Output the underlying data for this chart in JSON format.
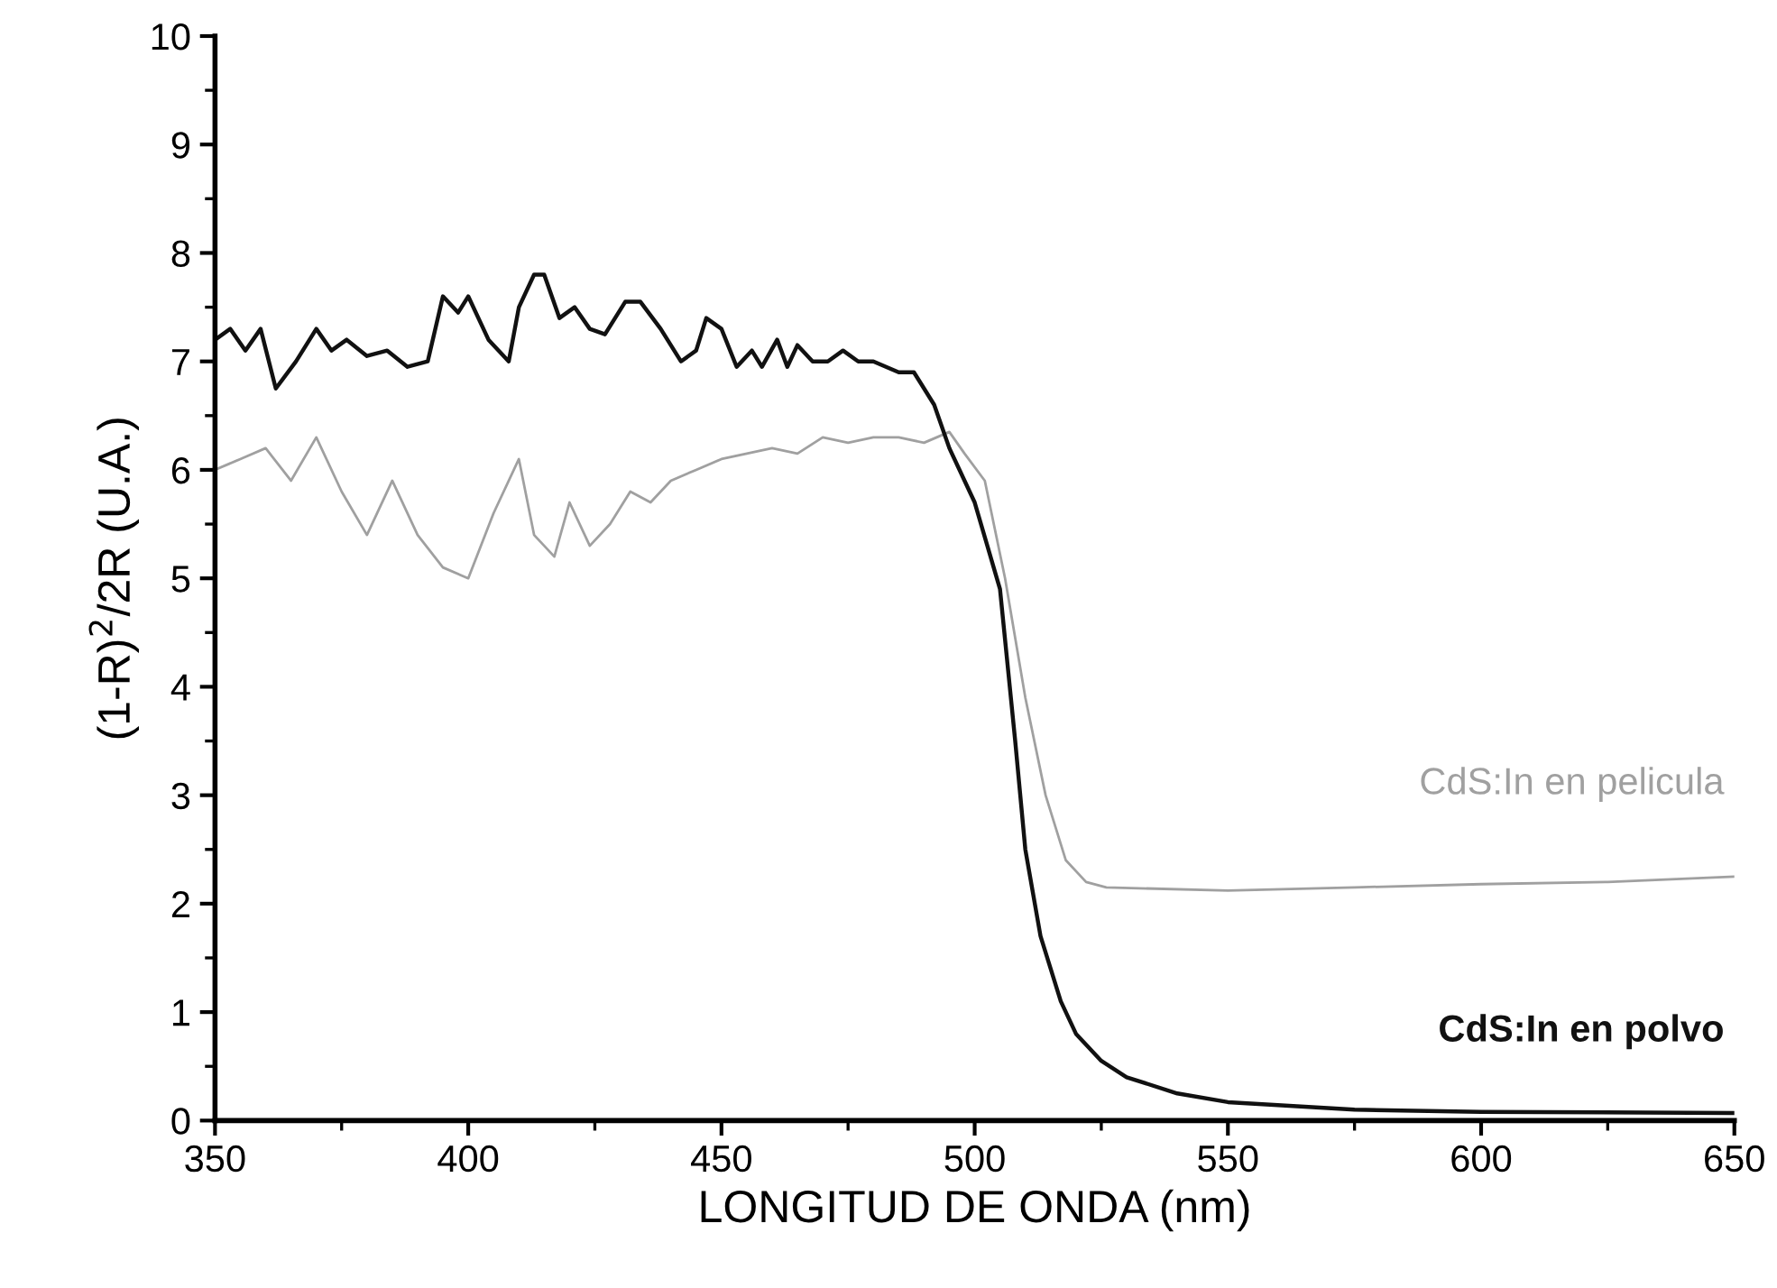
{
  "chart_data": {
    "type": "line",
    "xlabel": "LONGITUD DE ONDA (nm)",
    "ylabel": "(1-R)$^{2}$/2R (U.A.)",
    "xlim": [
      350,
      650
    ],
    "xticks": [
      350,
      400,
      450,
      500,
      550,
      600,
      650
    ],
    "ylim": [
      0,
      10
    ],
    "yticks": [
      0,
      1,
      2,
      3,
      4,
      5,
      6,
      7,
      8,
      9,
      10
    ],
    "grid": false,
    "legend": false,
    "marker": "none",
    "line_style": "solid",
    "series": [
      {
        "name": "CdS:In en pelicula",
        "color": "#a0a0a0",
        "x": [
          350,
          355,
          360,
          365,
          370,
          375,
          380,
          385,
          390,
          395,
          400,
          405,
          410,
          413,
          417,
          420,
          424,
          428,
          432,
          436,
          440,
          445,
          450,
          455,
          460,
          465,
          470,
          475,
          480,
          485,
          490,
          495,
          498,
          502,
          506,
          510,
          514,
          518,
          522,
          526,
          550,
          575,
          600,
          625,
          650
        ],
        "values": [
          6.0,
          6.1,
          6.2,
          5.9,
          6.3,
          5.8,
          5.4,
          5.9,
          5.4,
          5.1,
          5.0,
          5.6,
          6.1,
          5.4,
          5.2,
          5.7,
          5.3,
          5.5,
          5.8,
          5.7,
          5.9,
          6.0,
          6.1,
          6.15,
          6.2,
          6.15,
          6.3,
          6.25,
          6.3,
          6.3,
          6.25,
          6.35,
          6.15,
          5.9,
          5.0,
          3.9,
          3.0,
          2.4,
          2.2,
          2.15,
          2.12,
          2.15,
          2.18,
          2.2,
          2.25
        ]
      },
      {
        "name": "CdS:In en polvo",
        "color": "#111111",
        "x": [
          350,
          353,
          356,
          359,
          362,
          366,
          370,
          373,
          376,
          380,
          384,
          388,
          392,
          395,
          398,
          400,
          404,
          408,
          410,
          413,
          415,
          418,
          421,
          424,
          427,
          431,
          434,
          438,
          442,
          445,
          447,
          450,
          453,
          456,
          458,
          461,
          463,
          465,
          468,
          471,
          474,
          477,
          480,
          485,
          488,
          492,
          495,
          500,
          505,
          508,
          510,
          513,
          517,
          520,
          525,
          530,
          540,
          550,
          575,
          600,
          650
        ],
        "values": [
          7.2,
          7.3,
          7.1,
          7.3,
          6.75,
          7.0,
          7.3,
          7.1,
          7.2,
          7.05,
          7.1,
          6.95,
          7.0,
          7.6,
          7.45,
          7.6,
          7.2,
          7.0,
          7.5,
          7.8,
          7.8,
          7.4,
          7.5,
          7.3,
          7.25,
          7.55,
          7.55,
          7.3,
          7.0,
          7.1,
          7.4,
          7.3,
          6.95,
          7.1,
          6.95,
          7.2,
          6.95,
          7.15,
          7.0,
          7.0,
          7.1,
          7.0,
          7.0,
          6.9,
          6.9,
          6.6,
          6.2,
          5.7,
          4.9,
          3.5,
          2.5,
          1.7,
          1.1,
          0.8,
          0.55,
          0.4,
          0.25,
          0.17,
          0.1,
          0.08,
          0.07
        ]
      }
    ]
  }
}
